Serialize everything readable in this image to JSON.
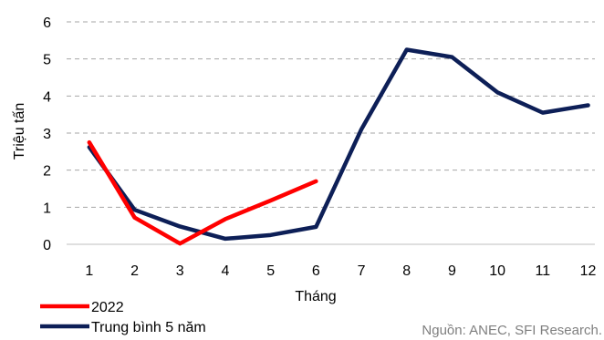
{
  "chart_data": {
    "type": "line",
    "title": "",
    "xlabel": "Tháng",
    "ylabel": "Triệu tấn",
    "x": [
      1,
      2,
      3,
      4,
      5,
      6,
      7,
      8,
      9,
      10,
      11,
      12
    ],
    "ylim": [
      0,
      6
    ],
    "yticks": [
      0,
      1,
      2,
      3,
      4,
      5,
      6
    ],
    "grid": "horizontal dashed",
    "legend_position": "bottom-left",
    "series": [
      {
        "name": "2022",
        "color": "#ff0000",
        "values": [
          2.75,
          0.72,
          0.02,
          0.68,
          1.18,
          1.7,
          null,
          null,
          null,
          null,
          null,
          null
        ]
      },
      {
        "name": "Trung bình 5 năm",
        "color": "#0d1f57",
        "values": [
          2.62,
          0.93,
          0.48,
          0.15,
          0.25,
          0.47,
          3.1,
          5.25,
          5.05,
          4.1,
          3.55,
          3.75
        ]
      }
    ],
    "source": "Nguồn: ANEC, SFI Research."
  }
}
